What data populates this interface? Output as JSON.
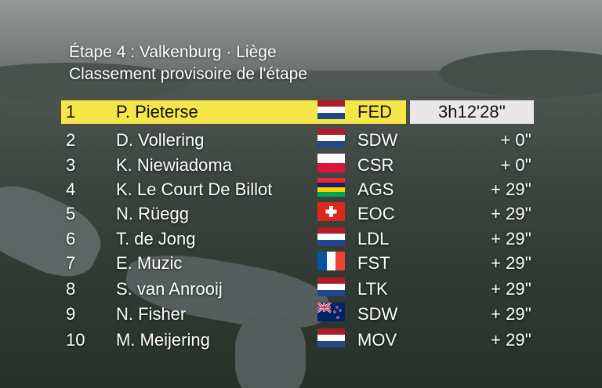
{
  "header": {
    "stage_line": "Étape 4 : Valkenburg · Liège",
    "subtitle": "Classement provisoire de l'étape"
  },
  "rows": [
    {
      "pos": "1",
      "name": "P. Pieterse",
      "flag": "netherlands-flag-icon",
      "team": "FED",
      "time": "3h12'28''"
    },
    {
      "pos": "2",
      "name": "D. Vollering",
      "flag": "netherlands-flag-icon",
      "team": "SDW",
      "time": "+  0''"
    },
    {
      "pos": "3",
      "name": "K. Niewiadoma",
      "flag": "poland-flag-icon",
      "team": "CSR",
      "time": "+  0''"
    },
    {
      "pos": "4",
      "name": "K. Le Court De Billot",
      "flag": "mauritius-flag-icon",
      "team": "AGS",
      "time": "+ 29''"
    },
    {
      "pos": "5",
      "name": "N. Rüegg",
      "flag": "switzerland-flag-icon",
      "team": "EOC",
      "time": "+ 29''"
    },
    {
      "pos": "6",
      "name": "T. de Jong",
      "flag": "netherlands-flag-icon",
      "team": "LDL",
      "time": "+ 29''"
    },
    {
      "pos": "7",
      "name": "E. Muzic",
      "flag": "france-flag-icon",
      "team": "FST",
      "time": "+ 29''"
    },
    {
      "pos": "8",
      "name": "S. van Anrooij",
      "flag": "netherlands-flag-icon",
      "team": "LTK",
      "time": "+ 29''"
    },
    {
      "pos": "9",
      "name": "N. Fisher",
      "flag": "new-zealand-flag-icon",
      "team": "SDW",
      "time": "+ 29''"
    },
    {
      "pos": "10",
      "name": "M. Meijering",
      "flag": "netherlands-flag-icon",
      "team": "MOV",
      "time": "+ 29''"
    }
  ]
}
